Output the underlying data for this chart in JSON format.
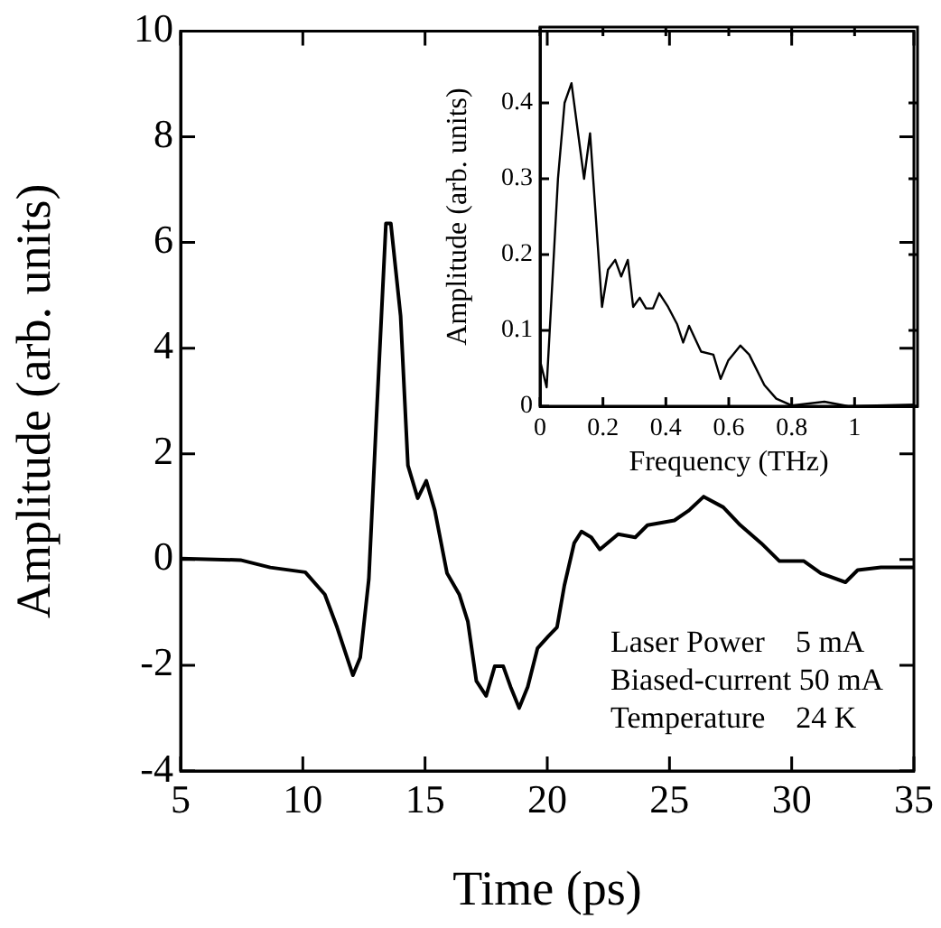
{
  "chart_data": [
    {
      "type": "line",
      "xlabel": "Time (ps)",
      "ylabel": "Amplitude (arb. units)",
      "xlim": [
        5,
        35
      ],
      "ylim": [
        -4,
        10
      ],
      "xticks": [
        5,
        10,
        15,
        20,
        25,
        30,
        35
      ],
      "yticks": [
        -4,
        -2,
        0,
        2,
        4,
        6,
        8,
        10
      ],
      "annotations": [
        "Laser Power    5 mA",
        "Biased-current 50 mA",
        "Temperature    24 K"
      ],
      "series": [
        {
          "color": "#000000",
          "x": [
            5,
            7.45,
            8.67,
            10.1,
            10.9,
            11.4,
            12.05,
            12.35,
            12.7,
            13.0,
            13.4,
            13.6,
            14.0,
            14.3,
            14.7,
            15.05,
            15.4,
            15.9,
            16.4,
            16.75,
            17.1,
            17.5,
            17.85,
            18.2,
            18.5,
            18.85,
            19.2,
            19.6,
            20.05,
            20.4,
            20.7,
            21.1,
            21.4,
            21.8,
            22.15,
            22.9,
            23.6,
            24.1,
            25.2,
            25.8,
            26.4,
            27.2,
            27.9,
            28.75,
            29.5,
            30.5,
            31.2,
            32.2,
            32.7,
            33.65,
            35
          ],
          "values": [
            0.02,
            -0.01,
            -0.15,
            -0.24,
            -0.66,
            -1.28,
            -2.19,
            -1.85,
            -0.37,
            2.57,
            6.36,
            6.36,
            4.61,
            1.78,
            1.16,
            1.49,
            0.93,
            -0.26,
            -0.66,
            -1.17,
            -2.3,
            -2.58,
            -2.02,
            -2.02,
            -2.41,
            -2.81,
            -2.41,
            -1.68,
            -1.45,
            -1.28,
            -0.49,
            0.31,
            0.53,
            0.42,
            0.19,
            0.48,
            0.42,
            0.65,
            0.74,
            0.93,
            1.19,
            0.99,
            0.65,
            0.31,
            -0.03,
            -0.03,
            -0.26,
            -0.43,
            -0.2,
            -0.15,
            -0.15
          ]
        }
      ]
    },
    {
      "type": "line",
      "xlabel": "Frequency (THz)",
      "ylabel": "Amplitude (arb. units)",
      "xlim": [
        0,
        1.2
      ],
      "ylim": [
        0,
        0.5
      ],
      "xticks": [
        0,
        0.2,
        0.4,
        0.6,
        0.8,
        1
      ],
      "yticks": [
        0,
        0.1,
        0.2,
        0.3,
        0.4
      ],
      "series": [
        {
          "color": "#000000",
          "x": [
            0,
            0.021,
            0.057,
            0.078,
            0.1,
            0.14,
            0.159,
            0.197,
            0.216,
            0.239,
            0.258,
            0.279,
            0.296,
            0.317,
            0.337,
            0.359,
            0.379,
            0.407,
            0.436,
            0.455,
            0.474,
            0.512,
            0.551,
            0.574,
            0.598,
            0.637,
            0.665,
            0.713,
            0.751,
            0.8,
            0.904,
            0.98,
            1.19
          ],
          "values": [
            0.06,
            0.025,
            0.3,
            0.4,
            0.426,
            0.3,
            0.36,
            0.131,
            0.18,
            0.193,
            0.171,
            0.193,
            0.131,
            0.143,
            0.129,
            0.129,
            0.149,
            0.131,
            0.108,
            0.084,
            0.106,
            0.072,
            0.068,
            0.036,
            0.06,
            0.08,
            0.068,
            0.028,
            0.01,
            0.001,
            0.006,
            0,
            0.002
          ]
        }
      ]
    }
  ]
}
